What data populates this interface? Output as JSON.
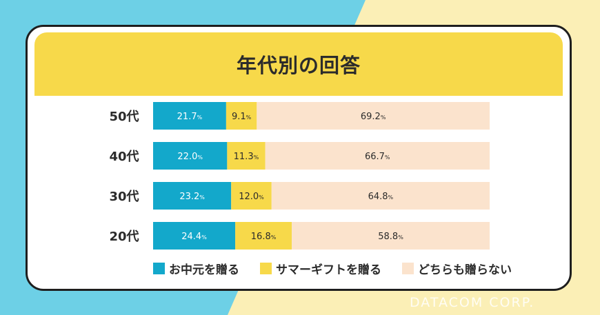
{
  "watermark": "DATACOM CORP.",
  "chart_data": {
    "type": "bar",
    "stacked": "horizontal-100",
    "title": "年代別の回答",
    "categories": [
      "50代",
      "40代",
      "30代",
      "20代"
    ],
    "series": [
      {
        "name": "お中元を贈る",
        "color": "#13a8cb",
        "values": [
          21.7,
          22.0,
          23.2,
          24.4
        ],
        "labels": [
          "21.7",
          "22.0",
          "23.2",
          "24.4"
        ]
      },
      {
        "name": "サマーギフトを贈る",
        "color": "#f7d94a",
        "values": [
          9.1,
          11.3,
          12.0,
          16.8
        ],
        "labels": [
          "9.1",
          "11.3",
          "12.0",
          "16.8"
        ]
      },
      {
        "name": "どちらも贈らない",
        "color": "#fbe3cd",
        "values": [
          69.2,
          66.7,
          64.8,
          58.8
        ],
        "labels": [
          "69.2",
          "66.7",
          "64.8",
          "58.8"
        ]
      }
    ],
    "unit": "%",
    "legend_position": "bottom"
  }
}
